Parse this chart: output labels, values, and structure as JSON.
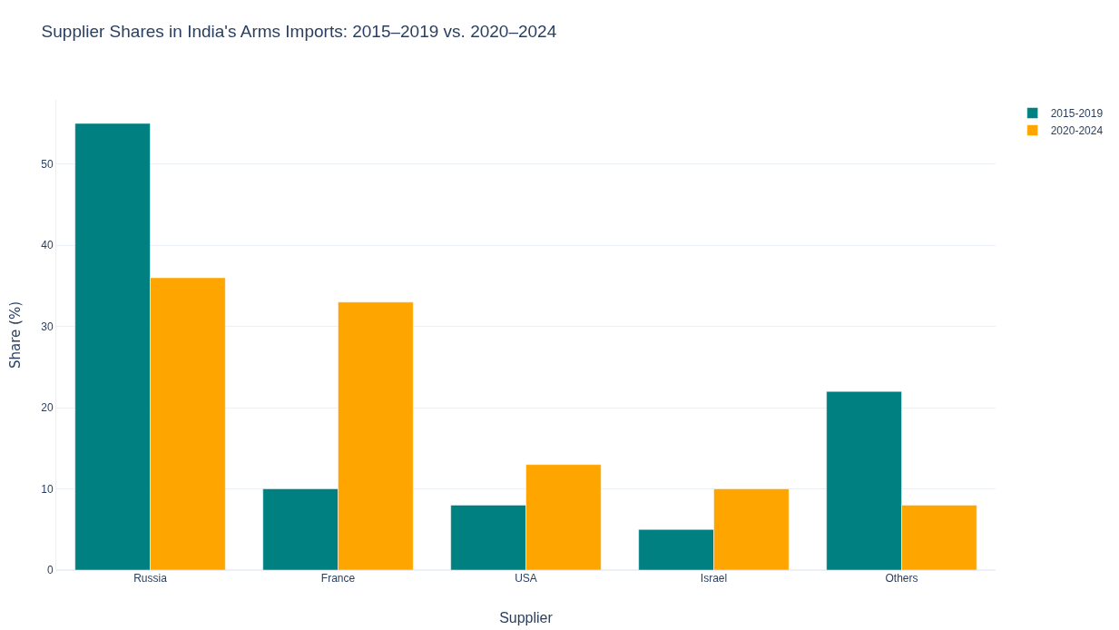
{
  "chart_data": {
    "type": "bar",
    "title": "Supplier Shares in India's Arms Imports: 2015–2019 vs. 2020–2024",
    "xlabel": "Supplier",
    "ylabel": "Share (%)",
    "categories": [
      "Russia",
      "France",
      "USA",
      "Israel",
      "Others"
    ],
    "series": [
      {
        "name": "2015-2019",
        "color": "#008080",
        "values": [
          55,
          10,
          8,
          5,
          22
        ]
      },
      {
        "name": "2020-2024",
        "color": "#ffa500",
        "values": [
          36,
          33,
          13,
          10,
          8
        ]
      }
    ],
    "ylim": [
      0,
      57.9
    ],
    "yticks": [
      0,
      10,
      20,
      30,
      40,
      50
    ],
    "grid": "y",
    "legend": "top right"
  }
}
